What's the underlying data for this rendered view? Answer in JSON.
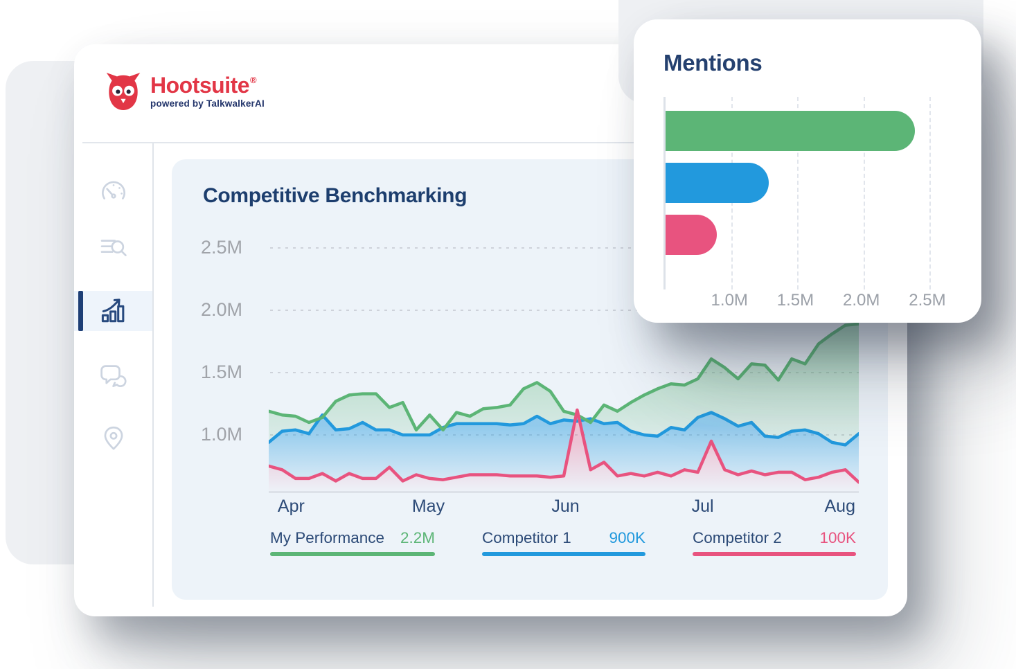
{
  "brand": {
    "name": "Hootsuite",
    "registered": "®",
    "tagline": "powered by TalkwalkerAI",
    "logo_color": "#e23646"
  },
  "sidebar": {
    "items": [
      {
        "name": "dashboard",
        "icon": "speedometer-icon",
        "active": false
      },
      {
        "name": "search",
        "icon": "search-list-icon",
        "active": false
      },
      {
        "name": "analytics",
        "icon": "trend-chart-icon",
        "active": true
      },
      {
        "name": "messages",
        "icon": "chat-bubbles-icon",
        "active": false
      },
      {
        "name": "locations",
        "icon": "location-pin-icon",
        "active": false
      }
    ]
  },
  "benchmark_panel": {
    "title": "Competitive Benchmarking",
    "legend": [
      {
        "label": "My Performance",
        "value": "2.2M",
        "color": "#5cb576"
      },
      {
        "label": "Competitor 1",
        "value": "900K",
        "color": "#2299dd"
      },
      {
        "label": "Competitor 2",
        "value": "100K",
        "color": "#e8537f"
      }
    ],
    "chart_data": {
      "type": "area",
      "x_ticks": [
        "Apr",
        "May",
        "Jun",
        "Jul",
        "Aug"
      ],
      "y_tick_labels": [
        "2.5M",
        "2.0M",
        "1.5M",
        "1.0M"
      ],
      "y_tick_values": [
        2.5,
        2.0,
        1.5,
        1.0
      ],
      "ylim": [
        0.533,
        2.6
      ],
      "unit": "millions of mentions",
      "grid": "horizontal-dashed",
      "series": [
        {
          "name": "My Performance",
          "color": "#5cb576",
          "values": [
            1.19,
            1.16,
            1.15,
            1.1,
            1.14,
            1.27,
            1.32,
            1.33,
            1.33,
            1.22,
            1.26,
            1.04,
            1.16,
            1.04,
            1.18,
            1.15,
            1.21,
            1.22,
            1.24,
            1.37,
            1.42,
            1.35,
            1.19,
            1.16,
            1.1,
            1.24,
            1.19,
            1.26,
            1.32,
            1.37,
            1.41,
            1.4,
            1.45,
            1.61,
            1.54,
            1.45,
            1.57,
            1.56,
            1.44,
            1.61,
            1.57,
            1.73,
            1.81,
            1.88,
            1.89
          ]
        },
        {
          "name": "Competitor 1",
          "color": "#2299dd",
          "values": [
            0.94,
            1.03,
            1.04,
            1.01,
            1.16,
            1.04,
            1.05,
            1.1,
            1.04,
            1.04,
            1.0,
            1.0,
            1.0,
            1.06,
            1.09,
            1.09,
            1.09,
            1.09,
            1.08,
            1.09,
            1.15,
            1.09,
            1.12,
            1.11,
            1.13,
            1.09,
            1.1,
            1.03,
            1.0,
            0.99,
            1.06,
            1.04,
            1.14,
            1.18,
            1.13,
            1.07,
            1.1,
            0.99,
            0.98,
            1.03,
            1.04,
            1.01,
            0.94,
            0.92,
            1.01
          ]
        },
        {
          "name": "Competitor 2",
          "color": "#e8537f",
          "values": [
            0.75,
            0.72,
            0.65,
            0.65,
            0.69,
            0.63,
            0.69,
            0.65,
            0.65,
            0.74,
            0.63,
            0.68,
            0.65,
            0.64,
            0.66,
            0.68,
            0.68,
            0.68,
            0.67,
            0.67,
            0.67,
            0.66,
            0.67,
            1.2,
            0.72,
            0.78,
            0.67,
            0.69,
            0.67,
            0.7,
            0.67,
            0.72,
            0.7,
            0.95,
            0.72,
            0.68,
            0.71,
            0.68,
            0.7,
            0.7,
            0.64,
            0.66,
            0.7,
            0.72,
            0.62
          ]
        }
      ]
    }
  },
  "mentions_card": {
    "title": "Mentions",
    "chart_data": {
      "type": "bar",
      "orientation": "horizontal",
      "categories": [
        "My Performance",
        "Competitor 1",
        "Competitor 2"
      ],
      "values_millions": [
        2.39,
        1.28,
        0.89
      ],
      "colors": [
        "#5cb576",
        "#2299dd",
        "#e8537f"
      ],
      "x_tick_labels": [
        "1.0M",
        "1.5M",
        "2.0M",
        "2.5M"
      ],
      "x_tick_values": [
        1.0,
        1.5,
        2.0,
        2.5
      ],
      "xlim": [
        0.5,
        2.6
      ],
      "grid": "vertical-dashed"
    }
  },
  "colors": {
    "title_navy": "#1d3e6e",
    "axis_label_gray": "#a0a3a9",
    "panel_background": "#edf3f9",
    "accent_green": "#5cb576",
    "accent_blue": "#2299dd",
    "accent_pink": "#e8537f",
    "logo_red": "#e23646"
  }
}
